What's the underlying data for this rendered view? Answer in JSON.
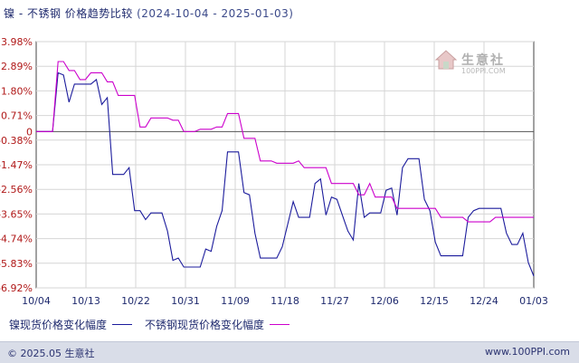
{
  "title": {
    "main": "镍 - 不锈钢 价格趋势比较",
    "range": "(2024-10-04 - 2025-01-03)"
  },
  "watermark": {
    "name": "生意社",
    "url": "100PPI.COM"
  },
  "footer": {
    "copyright": "© 2025.05 生意社",
    "url": "www.100PPI.com"
  },
  "colors": {
    "nickel": "#1c1c9c",
    "stainless": "#cc00cc",
    "axis_label": "#b01818",
    "grid": "#d6d6d6",
    "zero_line": "#555555"
  },
  "chart_data": {
    "type": "line",
    "x_tick_labels": [
      "10/04",
      "10/13",
      "10/22",
      "10/31",
      "11/09",
      "11/18",
      "11/27",
      "12/06",
      "12/15",
      "12/24",
      "01/03"
    ],
    "y_tick_labels": [
      "3.98%",
      "2.89%",
      "1.80%",
      "0.71%",
      "0",
      "-0.38%",
      "-1.47%",
      "-2.56%",
      "-3.65%",
      "-4.74%",
      "-5.83%",
      "-6.92%"
    ],
    "y_tick_values": [
      3.98,
      2.89,
      1.8,
      0.71,
      0,
      -0.38,
      -1.47,
      -2.56,
      -3.65,
      -4.74,
      -5.83,
      -6.92
    ],
    "ylim": [
      -6.92,
      3.98
    ],
    "x_start": "2024-10-04",
    "x_end": "2025-01-03",
    "grid": true,
    "legend_position": "bottom-left",
    "series": [
      {
        "name": "镍现货价格变化幅度",
        "color": "#1c1c9c",
        "points": [
          [
            "2024-10-04",
            0
          ],
          [
            "2024-10-06",
            0
          ],
          [
            "2024-10-07",
            0
          ],
          [
            "2024-10-08",
            2.6
          ],
          [
            "2024-10-09",
            2.5
          ],
          [
            "2024-10-10",
            1.3
          ],
          [
            "2024-10-11",
            2.1
          ],
          [
            "2024-10-14",
            2.1
          ],
          [
            "2024-10-15",
            2.3
          ],
          [
            "2024-10-16",
            1.2
          ],
          [
            "2024-10-17",
            1.5
          ],
          [
            "2024-10-18",
            -1.9
          ],
          [
            "2024-10-20",
            -1.9
          ],
          [
            "2024-10-21",
            -1.6
          ],
          [
            "2024-10-22",
            -3.5
          ],
          [
            "2024-10-23",
            -3.5
          ],
          [
            "2024-10-24",
            -3.9
          ],
          [
            "2024-10-25",
            -3.6
          ],
          [
            "2024-10-27",
            -3.6
          ],
          [
            "2024-10-28",
            -4.4
          ],
          [
            "2024-10-29",
            -5.7
          ],
          [
            "2024-10-30",
            -5.6
          ],
          [
            "2024-10-31",
            -6.0
          ],
          [
            "2024-11-03",
            -6.0
          ],
          [
            "2024-11-04",
            -5.2
          ],
          [
            "2024-11-05",
            -5.3
          ],
          [
            "2024-11-06",
            -4.2
          ],
          [
            "2024-11-07",
            -3.5
          ],
          [
            "2024-11-08",
            -0.9
          ],
          [
            "2024-11-10",
            -0.9
          ],
          [
            "2024-11-11",
            -2.7
          ],
          [
            "2024-11-12",
            -2.8
          ],
          [
            "2024-11-13",
            -4.5
          ],
          [
            "2024-11-14",
            -5.6
          ],
          [
            "2024-11-17",
            -5.6
          ],
          [
            "2024-11-18",
            -5.1
          ],
          [
            "2024-11-20",
            -3.1
          ],
          [
            "2024-11-21",
            -3.8
          ],
          [
            "2024-11-23",
            -3.8
          ],
          [
            "2024-11-24",
            -2.3
          ],
          [
            "2024-11-25",
            -2.1
          ],
          [
            "2024-11-26",
            -3.7
          ],
          [
            "2024-11-27",
            -2.9
          ],
          [
            "2024-11-28",
            -3.0
          ],
          [
            "2024-11-30",
            -4.4
          ],
          [
            "2024-12-01",
            -4.8
          ],
          [
            "2024-12-02",
            -2.3
          ],
          [
            "2024-12-03",
            -3.8
          ],
          [
            "2024-12-04",
            -3.6
          ],
          [
            "2024-12-06",
            -3.6
          ],
          [
            "2024-12-07",
            -2.6
          ],
          [
            "2024-12-08",
            -2.5
          ],
          [
            "2024-12-09",
            -3.7
          ],
          [
            "2024-12-10",
            -1.6
          ],
          [
            "2024-12-11",
            -1.2
          ],
          [
            "2024-12-13",
            -1.2
          ],
          [
            "2024-12-14",
            -3.0
          ],
          [
            "2024-12-15",
            -3.5
          ],
          [
            "2024-12-16",
            -4.9
          ],
          [
            "2024-12-17",
            -5.5
          ],
          [
            "2024-12-21",
            -5.5
          ],
          [
            "2024-12-22",
            -3.8
          ],
          [
            "2024-12-23",
            -3.5
          ],
          [
            "2024-12-24",
            -3.4
          ],
          [
            "2024-12-28",
            -3.4
          ],
          [
            "2024-12-29",
            -4.5
          ],
          [
            "2024-12-30",
            -5.0
          ],
          [
            "2024-12-31",
            -5.0
          ],
          [
            "2025-01-01",
            -4.5
          ],
          [
            "2025-01-02",
            -5.8
          ],
          [
            "2025-01-03",
            -6.4
          ]
        ]
      },
      {
        "name": "不锈钢现货价格变化幅度",
        "color": "#cc00cc",
        "points": [
          [
            "2024-10-04",
            0
          ],
          [
            "2024-10-06",
            0
          ],
          [
            "2024-10-07",
            0
          ],
          [
            "2024-10-08",
            3.1
          ],
          [
            "2024-10-09",
            3.1
          ],
          [
            "2024-10-10",
            2.7
          ],
          [
            "2024-10-11",
            2.7
          ],
          [
            "2024-10-12",
            2.3
          ],
          [
            "2024-10-13",
            2.3
          ],
          [
            "2024-10-14",
            2.6
          ],
          [
            "2024-10-16",
            2.6
          ],
          [
            "2024-10-17",
            2.2
          ],
          [
            "2024-10-18",
            2.2
          ],
          [
            "2024-10-19",
            1.6
          ],
          [
            "2024-10-22",
            1.6
          ],
          [
            "2024-10-23",
            0.2
          ],
          [
            "2024-10-24",
            0.2
          ],
          [
            "2024-10-25",
            0.6
          ],
          [
            "2024-10-28",
            0.6
          ],
          [
            "2024-10-29",
            0.5
          ],
          [
            "2024-10-30",
            0.5
          ],
          [
            "2024-10-31",
            0.0
          ],
          [
            "2024-11-02",
            0.0
          ],
          [
            "2024-11-03",
            0.1
          ],
          [
            "2024-11-05",
            0.1
          ],
          [
            "2024-11-06",
            0.2
          ],
          [
            "2024-11-07",
            0.2
          ],
          [
            "2024-11-08",
            0.8
          ],
          [
            "2024-11-09",
            0.8
          ],
          [
            "2024-11-10",
            0.8
          ],
          [
            "2024-11-11",
            -0.3
          ],
          [
            "2024-11-13",
            -0.3
          ],
          [
            "2024-11-14",
            -1.3
          ],
          [
            "2024-11-16",
            -1.3
          ],
          [
            "2024-11-17",
            -1.4
          ],
          [
            "2024-11-20",
            -1.4
          ],
          [
            "2024-11-21",
            -1.3
          ],
          [
            "2024-11-22",
            -1.6
          ],
          [
            "2024-11-26",
            -1.6
          ],
          [
            "2024-11-27",
            -2.3
          ],
          [
            "2024-12-01",
            -2.3
          ],
          [
            "2024-12-02",
            -2.8
          ],
          [
            "2024-12-03",
            -2.8
          ],
          [
            "2024-12-04",
            -2.3
          ],
          [
            "2024-12-05",
            -2.9
          ],
          [
            "2024-12-08",
            -2.9
          ],
          [
            "2024-12-09",
            -3.4
          ],
          [
            "2024-12-16",
            -3.4
          ],
          [
            "2024-12-17",
            -3.8
          ],
          [
            "2024-12-21",
            -3.8
          ],
          [
            "2024-12-22",
            -4.0
          ],
          [
            "2024-12-26",
            -4.0
          ],
          [
            "2024-12-27",
            -3.8
          ],
          [
            "2025-01-03",
            -3.8
          ]
        ]
      }
    ]
  }
}
